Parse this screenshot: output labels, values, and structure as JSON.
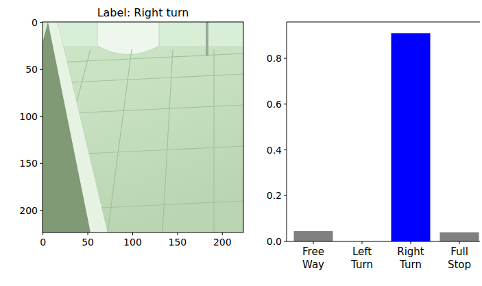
{
  "chart_data": [
    {
      "type": "image",
      "title": "Label: Right turn",
      "xlim": [
        -0.5,
        223.5
      ],
      "ylim": [
        223.5,
        -0.5
      ],
      "xticks": [
        0,
        50,
        100,
        150,
        200
      ],
      "yticks": [
        0,
        50,
        100,
        150,
        200
      ]
    },
    {
      "type": "bar",
      "categories": [
        "Free Way",
        "Left Turn",
        "Right Turn",
        "Full Stop"
      ],
      "values": [
        0.045,
        0,
        0.91,
        0.04
      ],
      "colors": [
        "#808080",
        "#808080",
        "#0000ff",
        "#808080"
      ],
      "ylim": [
        0,
        0.959
      ],
      "yticks": [
        {
          "value": 0,
          "label": "0.0"
        },
        {
          "value": 0.2,
          "label": "0.2"
        },
        {
          "value": 0.4,
          "label": "0.4"
        },
        {
          "value": 0.6,
          "label": "0.6"
        },
        {
          "value": 0.8,
          "label": "0.8"
        }
      ]
    }
  ]
}
